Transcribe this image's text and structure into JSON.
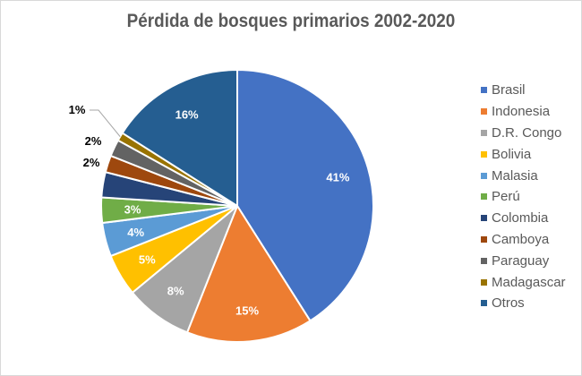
{
  "chart_data": {
    "type": "pie",
    "title": "Pérdida de bosques primarios 2002-2020",
    "legend_position": "right",
    "slices": [
      {
        "name": "Brasil",
        "value": 41,
        "label": "41%",
        "color": "#4472C4"
      },
      {
        "name": "Indonesia",
        "value": 15,
        "label": "15%",
        "color": "#ED7D31"
      },
      {
        "name": "D.R. Congo",
        "value": 8,
        "label": "8%",
        "color": "#A5A5A5"
      },
      {
        "name": "Bolivia",
        "value": 5,
        "label": "5%",
        "color": "#FFC000"
      },
      {
        "name": "Malasia",
        "value": 4,
        "label": "4%",
        "color": "#5B9BD5"
      },
      {
        "name": "Perú",
        "value": 3,
        "label": "3%",
        "color": "#70AD47"
      },
      {
        "name": "Colombia",
        "value": 3,
        "label": null,
        "color": "#264478"
      },
      {
        "name": "Camboya",
        "value": 2,
        "label": "2%",
        "color": "#9E480E"
      },
      {
        "name": "Paraguay",
        "value": 2,
        "label": "2%",
        "color": "#636363"
      },
      {
        "name": "Madagascar",
        "value": 1,
        "label": "1%",
        "color": "#997300"
      },
      {
        "name": "Otros",
        "value": 16,
        "label": "16%",
        "color": "#255E91"
      }
    ]
  }
}
